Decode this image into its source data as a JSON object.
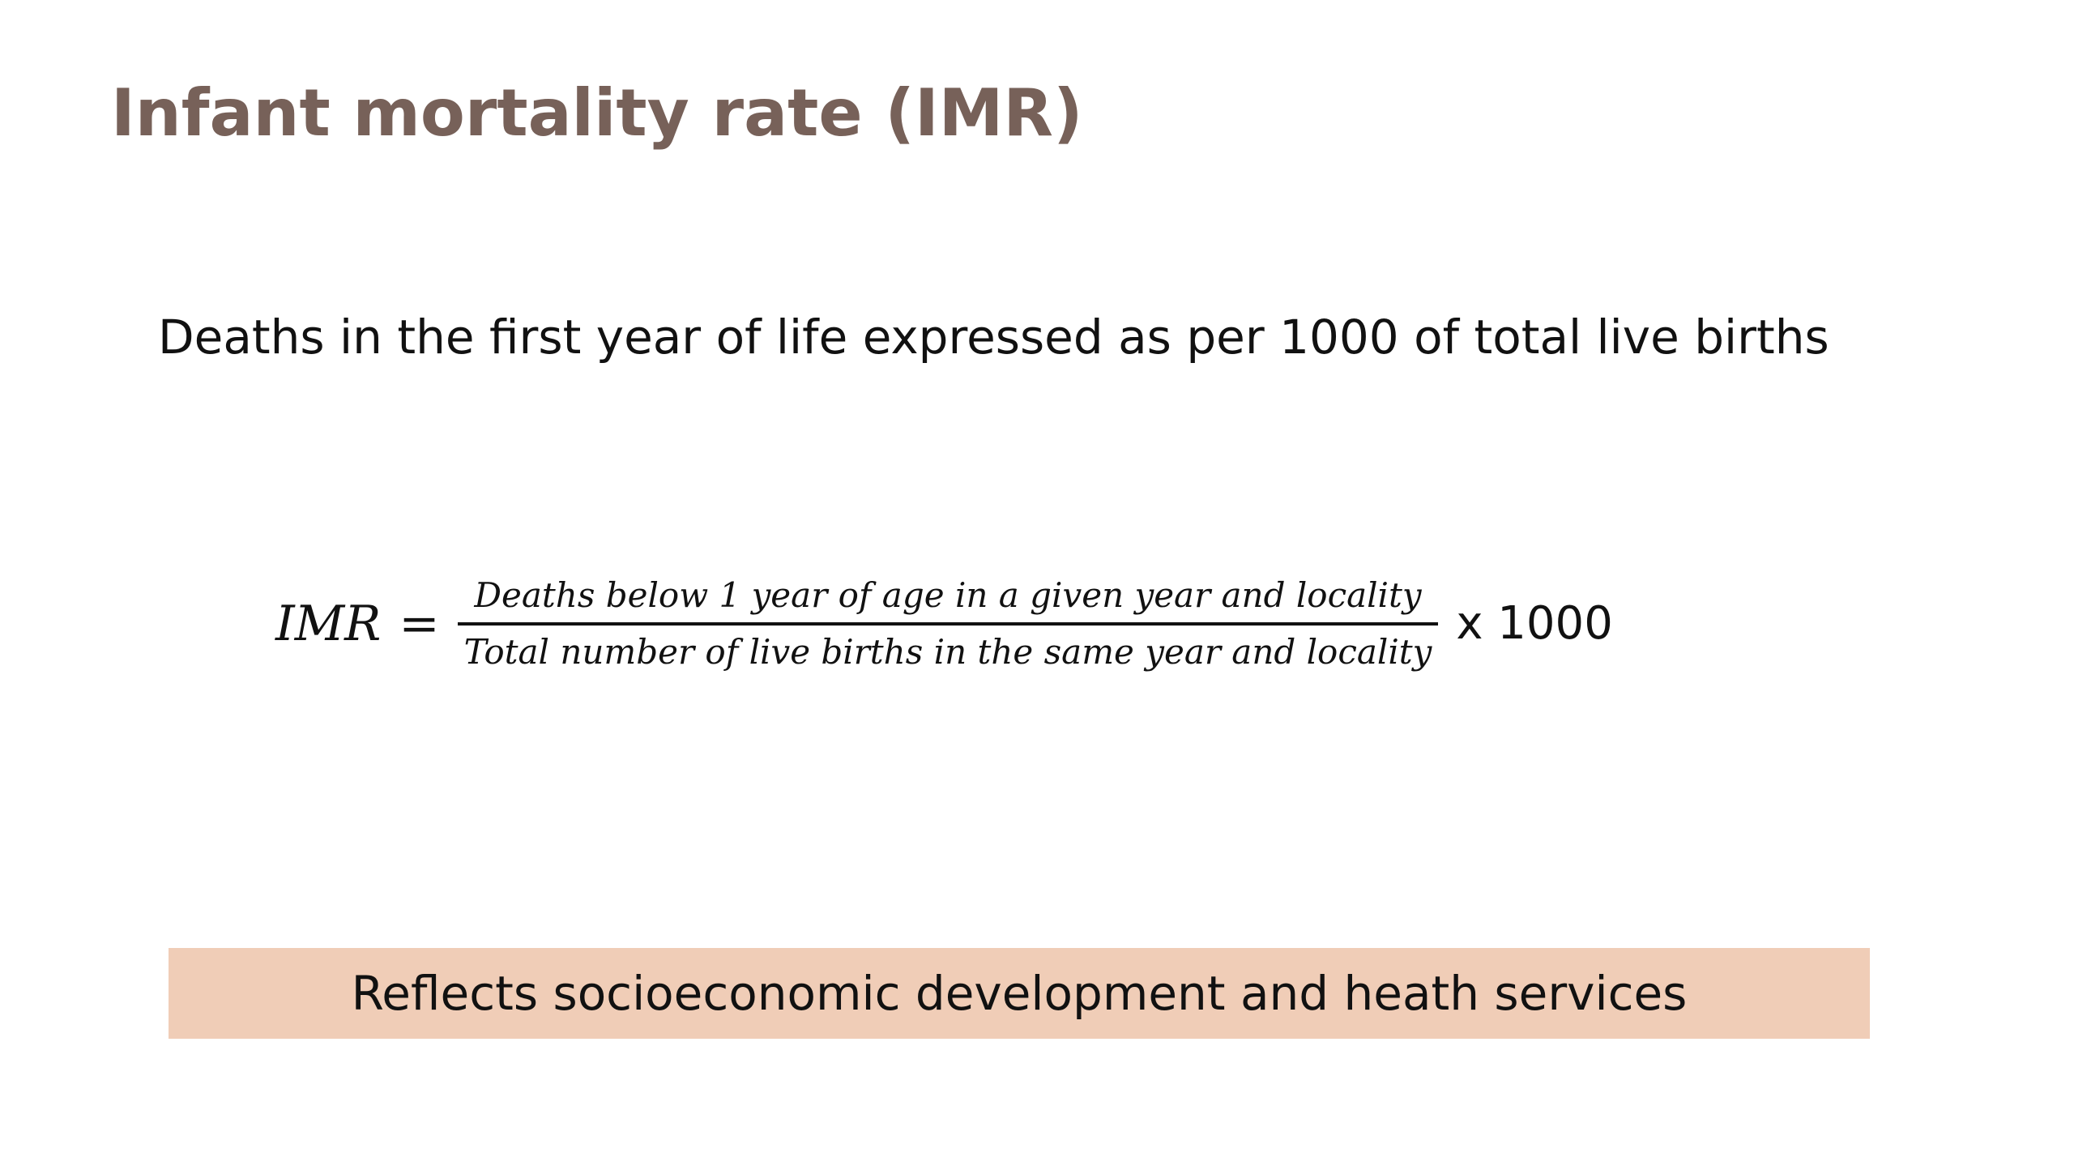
{
  "slide": {
    "title": "Infant mortality rate (IMR)",
    "definition": "Deaths in the first year of life expressed as per 1000 of total live births",
    "formula": {
      "lhs": "IMR",
      "equals": "=",
      "numerator": "Deaths below 1 year of age in a given year and locality",
      "denominator": "Total number of live births in the same year and locality",
      "multiplier": "x 1000"
    },
    "note": "Reflects socioeconomic development and heath services"
  },
  "colors": {
    "title": "#776159",
    "note_background": "#f0cdb7",
    "text": "#111111"
  }
}
